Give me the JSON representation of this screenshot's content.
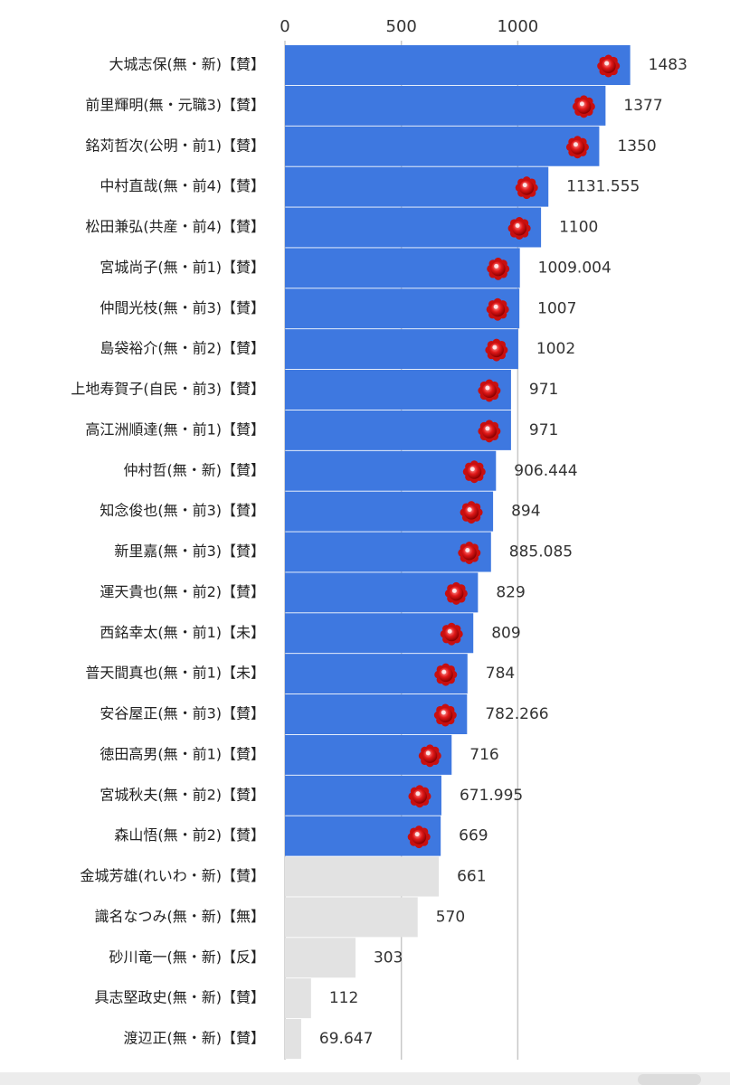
{
  "chart_data": {
    "type": "barh",
    "categories": [
      "大城志保(無・新)【賛】",
      "前里輝明(無・元職3)【賛】",
      "銘苅哲次(公明・前1)【賛】",
      "中村直哉(無・前4)【賛】",
      "松田兼弘(共産・前4)【賛】",
      "宮城尚子(無・前1)【賛】",
      "仲間光枝(無・前3)【賛】",
      "島袋裕介(無・前2)【賛】",
      "上地寿賀子(自民・前3)【賛】",
      "高江洲順達(無・前1)【賛】",
      "仲村哲(無・新)【賛】",
      "知念俊也(無・前3)【賛】",
      "新里嘉(無・前3)【賛】",
      "運天貴也(無・前2)【賛】",
      "西銘幸太(無・前1)【未】",
      "普天間真也(無・前1)【未】",
      "安谷屋正(無・前3)【賛】",
      "徳田高男(無・前1)【賛】",
      "宮城秋夫(無・前2)【賛】",
      "森山悟(無・前2)【賛】",
      "金城芳雄(れいわ・新)【賛】",
      "識名なつみ(無・新)【無】",
      "砂川竜一(無・新)【反】",
      "具志堅政史(無・新)【賛】",
      "渡辺正(無・新)【賛】"
    ],
    "values": [
      1483,
      1377,
      1350,
      1131.555,
      1100,
      1009.004,
      1007,
      1002,
      971,
      971,
      906.444,
      894,
      885.085,
      829,
      809,
      784,
      782.266,
      716,
      671.995,
      669,
      661,
      570,
      303,
      112,
      69.647
    ],
    "bar_colors": [
      "#3e78e0",
      "#3e78e0",
      "#3e78e0",
      "#3e78e0",
      "#3e78e0",
      "#3e78e0",
      "#3e78e0",
      "#3e78e0",
      "#3e78e0",
      "#3e78e0",
      "#3e78e0",
      "#3e78e0",
      "#3e78e0",
      "#3e78e0",
      "#3e78e0",
      "#3e78e0",
      "#3e78e0",
      "#3e78e0",
      "#3e78e0",
      "#3e78e0",
      "#e2e2e2",
      "#e2e2e2",
      "#e2e2e2",
      "#e2e2e2",
      "#e2e2e2"
    ],
    "xlim": [
      0,
      1900
    ],
    "xticks": [
      0,
      500,
      1000
    ],
    "grid": true
  }
}
